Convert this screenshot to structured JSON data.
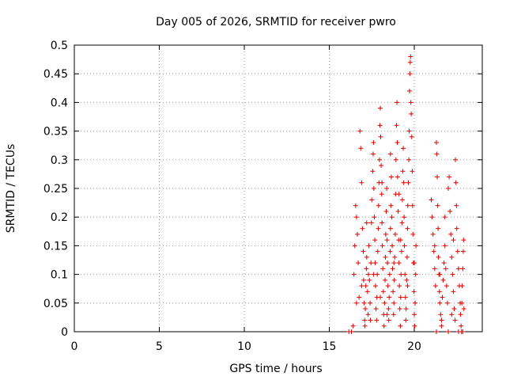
{
  "chart_data": {
    "type": "scatter",
    "title": "Day 005 of 2026, SRMTID for receiver pwro",
    "xlabel": "GPS time / hours",
    "ylabel": "SRMTID / TECUs",
    "xlim": [
      0,
      24
    ],
    "ylim": [
      0,
      0.5
    ],
    "xticks": [
      "0",
      "5",
      "10",
      "15",
      "20"
    ],
    "yticks": [
      "0",
      "0.05",
      "0.1",
      "0.15",
      "0.2",
      "0.25",
      "0.3",
      "0.35",
      "0.4",
      "0.45",
      "0.5"
    ],
    "grid": true,
    "marker": "+",
    "series": [
      {
        "color": "#dd0000",
        "points": [
          [
            16.15,
            0.0
          ],
          [
            16.3,
            0.0
          ],
          [
            16.4,
            0.01
          ],
          [
            16.45,
            0.1
          ],
          [
            16.5,
            0.15
          ],
          [
            16.55,
            0.22
          ],
          [
            16.6,
            0.2
          ],
          [
            16.65,
            0.17
          ],
          [
            16.7,
            0.12
          ],
          [
            16.75,
            0.06
          ],
          [
            16.8,
            0.35
          ],
          [
            16.85,
            0.32
          ],
          [
            16.9,
            0.26
          ],
          [
            16.95,
            0.18
          ],
          [
            17.0,
            0.14
          ],
          [
            17.02,
            0.09
          ],
          [
            17.05,
            0.05
          ],
          [
            17.08,
            0.02
          ],
          [
            17.1,
            0.01
          ],
          [
            17.12,
            0.04
          ],
          [
            17.15,
            0.08
          ],
          [
            17.18,
            0.11
          ],
          [
            17.2,
            0.13
          ],
          [
            17.25,
            0.07
          ],
          [
            17.28,
            0.03
          ],
          [
            17.3,
            0.1
          ],
          [
            17.33,
            0.15
          ],
          [
            17.36,
            0.09
          ],
          [
            17.4,
            0.05
          ],
          [
            17.42,
            0.02
          ],
          [
            17.45,
            0.12
          ],
          [
            17.48,
            0.19
          ],
          [
            17.5,
            0.23
          ],
          [
            17.55,
            0.28
          ],
          [
            17.58,
            0.31
          ],
          [
            17.6,
            0.33
          ],
          [
            17.62,
            0.25
          ],
          [
            17.65,
            0.2
          ],
          [
            17.68,
            0.16
          ],
          [
            17.7,
            0.12
          ],
          [
            17.72,
            0.08
          ],
          [
            17.75,
            0.04
          ],
          [
            17.78,
            0.02
          ],
          [
            17.8,
            0.06
          ],
          [
            17.82,
            0.1
          ],
          [
            17.85,
            0.14
          ],
          [
            17.88,
            0.18
          ],
          [
            17.9,
            0.22
          ],
          [
            17.92,
            0.26
          ],
          [
            17.95,
            0.3
          ],
          [
            17.98,
            0.36
          ],
          [
            18.0,
            0.39
          ],
          [
            18.02,
            0.34
          ],
          [
            18.05,
            0.29
          ],
          [
            18.08,
            0.24
          ],
          [
            18.1,
            0.19
          ],
          [
            18.12,
            0.15
          ],
          [
            18.15,
            0.11
          ],
          [
            18.18,
            0.07
          ],
          [
            18.2,
            0.03
          ],
          [
            18.22,
            0.01
          ],
          [
            18.25,
            0.05
          ],
          [
            18.28,
            0.09
          ],
          [
            18.3,
            0.13
          ],
          [
            18.32,
            0.17
          ],
          [
            18.35,
            0.21
          ],
          [
            18.38,
            0.25
          ],
          [
            18.4,
            0.16
          ],
          [
            18.42,
            0.12
          ],
          [
            18.45,
            0.08
          ],
          [
            18.48,
            0.04
          ],
          [
            18.5,
            0.02
          ],
          [
            18.52,
            0.06
          ],
          [
            18.55,
            0.1
          ],
          [
            18.58,
            0.14
          ],
          [
            18.6,
            0.18
          ],
          [
            18.62,
            0.22
          ],
          [
            18.65,
            0.27
          ],
          [
            18.68,
            0.2
          ],
          [
            18.7,
            0.15
          ],
          [
            18.72,
            0.11
          ],
          [
            18.75,
            0.07
          ],
          [
            18.78,
            0.03
          ],
          [
            18.8,
            0.05
          ],
          [
            18.82,
            0.09
          ],
          [
            18.85,
            0.13
          ],
          [
            18.88,
            0.17
          ],
          [
            18.9,
            0.24
          ],
          [
            18.92,
            0.3
          ],
          [
            18.95,
            0.36
          ],
          [
            18.98,
            0.4
          ],
          [
            19.0,
            0.33
          ],
          [
            19.02,
            0.27
          ],
          [
            19.05,
            0.21
          ],
          [
            19.08,
            0.16
          ],
          [
            19.1,
            0.12
          ],
          [
            19.12,
            0.08
          ],
          [
            19.15,
            0.04
          ],
          [
            19.18,
            0.01
          ],
          [
            19.2,
            0.06
          ],
          [
            19.22,
            0.1
          ],
          [
            19.25,
            0.14
          ],
          [
            19.28,
            0.19
          ],
          [
            19.3,
            0.23
          ],
          [
            19.32,
            0.28
          ],
          [
            19.35,
            0.32
          ],
          [
            19.38,
            0.26
          ],
          [
            19.4,
            0.2
          ],
          [
            19.42,
            0.15
          ],
          [
            19.45,
            0.1
          ],
          [
            19.48,
            0.06
          ],
          [
            19.5,
            0.02
          ],
          [
            19.52,
            0.04
          ],
          [
            19.55,
            0.09
          ],
          [
            19.58,
            0.13
          ],
          [
            19.6,
            0.18
          ],
          [
            19.62,
            0.22
          ],
          [
            19.65,
            0.26
          ],
          [
            19.68,
            0.3
          ],
          [
            19.7,
            0.35
          ],
          [
            19.72,
            0.42
          ],
          [
            19.74,
            0.45
          ],
          [
            19.76,
            0.47
          ],
          [
            19.78,
            0.48
          ],
          [
            19.8,
            0.4
          ],
          [
            19.82,
            0.38
          ],
          [
            19.85,
            0.34
          ],
          [
            19.88,
            0.28
          ],
          [
            19.9,
            0.22
          ],
          [
            19.92,
            0.17
          ],
          [
            19.95,
            0.12
          ],
          [
            19.98,
            0.07
          ],
          [
            20.0,
            0.03
          ],
          [
            20.02,
            0.01
          ],
          [
            20.05,
            0.05
          ],
          [
            20.08,
            0.1
          ],
          [
            20.1,
            0.15
          ],
          [
            16.6,
            0.05
          ],
          [
            16.9,
            0.08
          ],
          [
            17.2,
            0.19
          ],
          [
            17.6,
            0.1
          ],
          [
            18.0,
            0.06
          ],
          [
            18.4,
            0.03
          ],
          [
            18.8,
            0.12
          ],
          [
            19.2,
            0.16
          ],
          [
            19.6,
            0.08
          ],
          [
            20.0,
            0.12
          ],
          [
            18.1,
            0.26
          ],
          [
            18.6,
            0.31
          ],
          [
            19.1,
            0.24
          ],
          [
            21.0,
            0.23
          ],
          [
            21.05,
            0.2
          ],
          [
            21.1,
            0.17
          ],
          [
            21.15,
            0.14
          ],
          [
            21.2,
            0.11
          ],
          [
            21.25,
            0.08
          ],
          [
            21.3,
            0.33
          ],
          [
            21.32,
            0.31
          ],
          [
            21.35,
            0.27
          ],
          [
            21.38,
            0.22
          ],
          [
            21.4,
            0.18
          ],
          [
            21.42,
            0.13
          ],
          [
            21.45,
            0.1
          ],
          [
            21.48,
            0.07
          ],
          [
            21.5,
            0.05
          ],
          [
            21.55,
            0.03
          ],
          [
            21.6,
            0.02
          ],
          [
            21.65,
            0.06
          ],
          [
            21.7,
            0.09
          ],
          [
            21.75,
            0.12
          ],
          [
            21.8,
            0.15
          ],
          [
            21.85,
            0.11
          ],
          [
            21.9,
            0.08
          ],
          [
            21.95,
            0.05
          ],
          [
            22.0,
            0.25
          ],
          [
            22.05,
            0.27
          ],
          [
            22.1,
            0.21
          ],
          [
            22.15,
            0.17
          ],
          [
            22.2,
            0.13
          ],
          [
            22.25,
            0.1
          ],
          [
            22.3,
            0.07
          ],
          [
            22.35,
            0.04
          ],
          [
            22.4,
            0.02
          ],
          [
            22.42,
            0.3
          ],
          [
            22.45,
            0.26
          ],
          [
            22.48,
            0.22
          ],
          [
            22.5,
            0.18
          ],
          [
            22.55,
            0.14
          ],
          [
            22.6,
            0.11
          ],
          [
            22.65,
            0.08
          ],
          [
            22.7,
            0.05
          ],
          [
            22.72,
            0.03
          ],
          [
            22.75,
            0.01
          ],
          [
            22.78,
            0.0
          ],
          [
            22.8,
            0.05
          ],
          [
            22.82,
            0.08
          ],
          [
            22.85,
            0.11
          ],
          [
            22.88,
            0.14
          ],
          [
            22.9,
            0.16
          ],
          [
            22.92,
            0.04
          ],
          [
            21.3,
            0.0
          ],
          [
            21.6,
            0.01
          ],
          [
            22.0,
            0.0
          ],
          [
            22.2,
            0.03
          ],
          [
            22.6,
            0.0
          ],
          [
            22.85,
            0.0
          ],
          [
            21.2,
            0.15
          ],
          [
            21.8,
            0.2
          ],
          [
            22.3,
            0.16
          ],
          [
            21.5,
            0.1
          ]
        ]
      }
    ]
  }
}
